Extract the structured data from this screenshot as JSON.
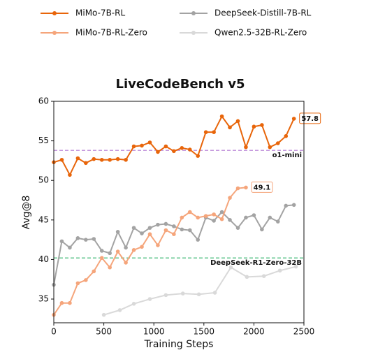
{
  "chart_data": {
    "type": "line",
    "title": "LiveCodeBench v5",
    "x_label": "Training Steps",
    "y_label": "Avg@8",
    "xlim": [
      0,
      2500
    ],
    "xticks": [
      0,
      500,
      1000,
      1500,
      2000,
      2500
    ],
    "ylim": [
      32,
      60
    ],
    "yticks": [
      35,
      40,
      45,
      50,
      55,
      60
    ],
    "series": [
      {
        "name": "MiMo-7B-RL",
        "color": "#e8650a",
        "end_label": true,
        "x": [
          0,
          80,
          160,
          240,
          320,
          400,
          480,
          560,
          640,
          720,
          800,
          880,
          960,
          1040,
          1120,
          1200,
          1280,
          1360,
          1440,
          1520,
          1600,
          1680,
          1760,
          1840,
          1920,
          2000,
          2080,
          2160,
          2240,
          2320,
          2400
        ],
        "values": [
          52.3,
          52.6,
          50.7,
          52.8,
          52.2,
          52.7,
          52.6,
          52.6,
          52.7,
          52.6,
          54.3,
          54.4,
          54.8,
          53.6,
          54.3,
          53.7,
          54.1,
          53.9,
          53.1,
          56.1,
          56.1,
          58.1,
          56.7,
          57.5,
          54.2,
          56.8,
          57.0,
          54.2,
          54.7,
          55.6,
          57.8
        ]
      },
      {
        "name": "MiMo-7B-RL-Zero",
        "color": "#f5a57b",
        "end_label": true,
        "x": [
          0,
          80,
          160,
          240,
          320,
          400,
          480,
          560,
          640,
          720,
          800,
          880,
          960,
          1040,
          1120,
          1200,
          1280,
          1360,
          1440,
          1520,
          1600,
          1680,
          1760,
          1840,
          1920
        ],
        "values": [
          33.0,
          34.5,
          34.5,
          37.0,
          37.4,
          38.5,
          40.2,
          39.0,
          41.0,
          39.6,
          41.2,
          41.6,
          43.2,
          41.8,
          43.7,
          43.2,
          45.3,
          46.0,
          45.3,
          45.5,
          45.7,
          45.1,
          47.8,
          49.0,
          49.1
        ]
      },
      {
        "name": "DeepSeek-Distill-7B-RL",
        "color": "#a3a3a3",
        "end_label": false,
        "x": [
          0,
          80,
          160,
          240,
          320,
          400,
          480,
          560,
          640,
          720,
          800,
          880,
          960,
          1040,
          1120,
          1200,
          1280,
          1360,
          1440,
          1520,
          1600,
          1680,
          1760,
          1840,
          1920,
          2000,
          2080,
          2160,
          2240,
          2320,
          2400
        ],
        "values": [
          36.8,
          42.3,
          41.5,
          42.7,
          42.5,
          42.6,
          41.1,
          40.8,
          43.5,
          41.5,
          44.0,
          43.3,
          44.0,
          44.4,
          44.5,
          44.2,
          43.8,
          43.7,
          42.5,
          45.3,
          44.9,
          46.0,
          45.0,
          44.0,
          45.3,
          45.6,
          43.8,
          45.3,
          44.8,
          46.8,
          46.9
        ]
      },
      {
        "name": "Qwen2.5-32B-RL-Zero",
        "color": "#d9d9d9",
        "end_label": false,
        "x": [
          500,
          660,
          800,
          960,
          1120,
          1290,
          1450,
          1610,
          1770,
          1930,
          2100,
          2260,
          2420
        ],
        "values": [
          33.0,
          33.6,
          34.4,
          35.0,
          35.5,
          35.7,
          35.6,
          35.8,
          39.0,
          37.8,
          37.9,
          38.6,
          39.1
        ]
      }
    ],
    "reference_lines": [
      {
        "label": "o1-mini",
        "value": 53.8,
        "color": "#b479d4"
      },
      {
        "label": "DeepSeek-R1-Zero-32B",
        "value": 40.2,
        "color": "#2fb36a"
      }
    ]
  }
}
